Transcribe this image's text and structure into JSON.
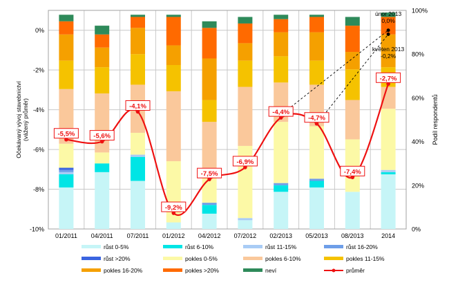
{
  "chart_data": {
    "type": "bar",
    "subtype": "stacked-bar-with-line-overlay",
    "categories": [
      "01/2011",
      "04/2011",
      "07/2011",
      "01/2012",
      "04/2012",
      "07/2012",
      "02/2013",
      "05/2013",
      "08/2013",
      "2014"
    ],
    "ylabel_left": "Očekávaný vývoj stavebnictví (vážený průměr)",
    "ylabel_right": "Podíl respondentů",
    "left_axis": {
      "min": -10,
      "max": 1,
      "ticks": [
        0,
        -2,
        -4,
        -6,
        -8,
        -10
      ],
      "tick_labels": [
        "0%",
        "-2%",
        "-4%",
        "-6%",
        "-8%",
        "-10%"
      ]
    },
    "right_axis": {
      "min": 0,
      "max": 100,
      "ticks": [
        0,
        20,
        40,
        60,
        80,
        100
      ],
      "tick_labels": [
        "0%",
        "20%",
        "40%",
        "60%",
        "80%",
        "100%"
      ]
    },
    "grid": true,
    "legend_position": "bottom",
    "series": [
      {
        "name": "růst 0-5%",
        "color": "#c6f5f7",
        "values": [
          19,
          26,
          22,
          3,
          7,
          4,
          17,
          19,
          17,
          25
        ]
      },
      {
        "name": "růst 6-10%",
        "color": "#00e5e5",
        "values": [
          6,
          4,
          11,
          0,
          4,
          0,
          3,
          3,
          0,
          1
        ]
      },
      {
        "name": "růst 11-15%",
        "color": "#a9ccf5",
        "values": [
          1,
          0,
          1,
          0,
          0,
          1,
          0,
          0,
          0,
          1
        ]
      },
      {
        "name": "růst 16-20%",
        "color": "#6e9ee8",
        "values": [
          1,
          0,
          0,
          0,
          1,
          0,
          1,
          1,
          0,
          0
        ]
      },
      {
        "name": "růst >20%",
        "color": "#3a64e0",
        "values": [
          1,
          0,
          0,
          0,
          0,
          0,
          0,
          0,
          0,
          0
        ]
      },
      {
        "name": "pokles 0-5%",
        "color": "#fcf9a6",
        "values": [
          11,
          5,
          10,
          28,
          13,
          33,
          28,
          24,
          24,
          28
        ]
      },
      {
        "name": "pokles 6-10%",
        "color": "#fac89b",
        "values": [
          25,
          27,
          22,
          32,
          24,
          27,
          18,
          19,
          18,
          10
        ]
      },
      {
        "name": "pokles 11-15%",
        "color": "#f5c200",
        "values": [
          13,
          12,
          14,
          12,
          10,
          12,
          12,
          11,
          14,
          9
        ]
      },
      {
        "name": "pokles 16-20%",
        "color": "#f5a000",
        "values": [
          12,
          9,
          12,
          9,
          19,
          8,
          11,
          13,
          8,
          15
        ]
      },
      {
        "name": "pokles >20%",
        "color": "#ff6a00",
        "values": [
          6,
          6,
          5,
          13,
          14,
          9,
          6,
          7,
          12,
          8
        ]
      },
      {
        "name": "neví",
        "color": "#2e8a5a",
        "values": [
          3,
          4,
          1,
          1,
          3,
          3,
          2,
          1,
          4,
          2
        ]
      }
    ],
    "line": {
      "name": "průměr",
      "color": "#ee1111",
      "values": [
        -5.5,
        -5.6,
        -4.1,
        -9.2,
        -7.5,
        -6.9,
        -4.4,
        -4.7,
        -7.4,
        -2.7
      ],
      "labels": [
        "-5,5%",
        "-5,6%",
        "-4,1%",
        "-9,2%",
        "-7,5%",
        "-6,9%",
        "-4,4%",
        "-4,7%",
        "-7,4%",
        "-2,7%"
      ]
    },
    "annotations": [
      {
        "text_1": "únor 2013",
        "text_2": "0,0%",
        "value": 0.0,
        "x": "2014"
      },
      {
        "text_1": "květen 2013",
        "text_2": "-0,2%",
        "value": -0.2,
        "x": "2014"
      }
    ]
  }
}
